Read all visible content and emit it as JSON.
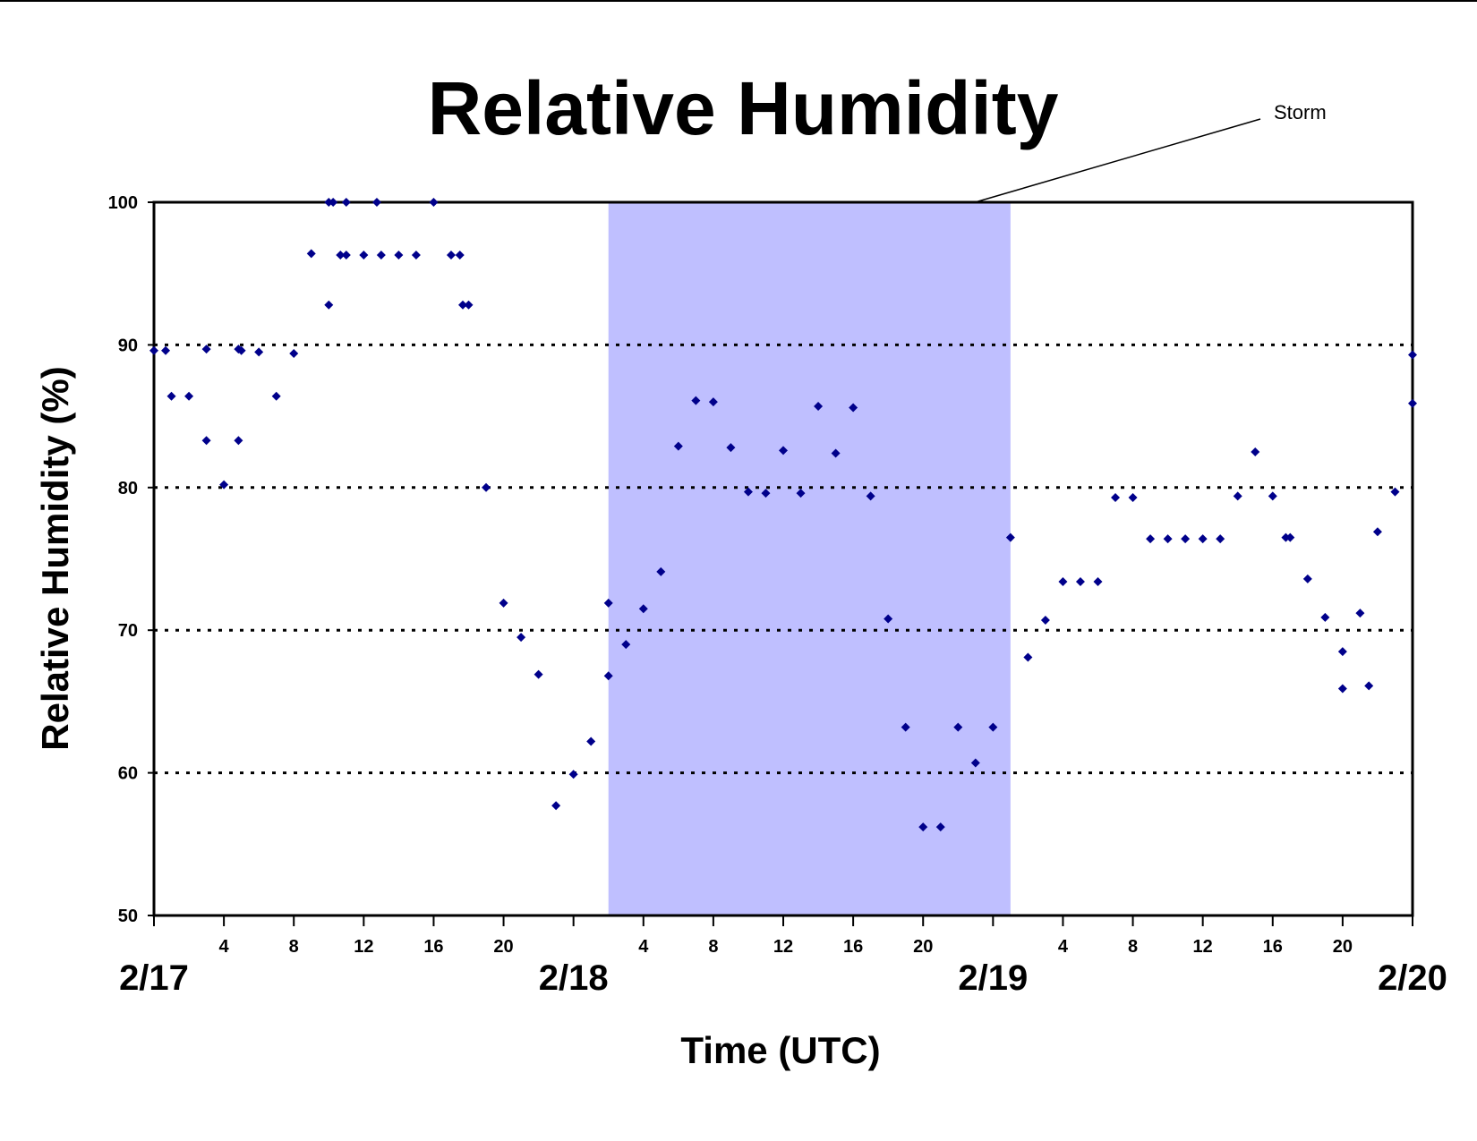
{
  "chart_data": {
    "type": "scatter",
    "title": "Relative Humidity",
    "xlabel": "Time (UTC)",
    "ylabel": "Relative Humidity (%)",
    "ylim": [
      50,
      100
    ],
    "xlim": [
      "2/17 00:00",
      "2/20 00:00"
    ],
    "y_ticks": [
      "50",
      "60",
      "70",
      "80",
      "90",
      "100"
    ],
    "x_hour_ticks": [
      "4",
      "8",
      "12",
      "16",
      "20"
    ],
    "day_labels": [
      "2/17",
      "2/18",
      "2/19",
      "2/20"
    ],
    "grid": "dotted horizontal at 60, 70, 80, 90",
    "series_color": "#00008B",
    "storm_shade_color": "#BFBFFF",
    "annotation": {
      "text": "Storm",
      "start": "2/18 02:00",
      "end": "2/19 01:00"
    },
    "points": [
      [
        "2/17 00:00",
        89.6
      ],
      [
        "2/17 00:40",
        89.6
      ],
      [
        "2/17 01:00",
        86.4
      ],
      [
        "2/17 02:00",
        86.4
      ],
      [
        "2/17 03:00",
        89.7
      ],
      [
        "2/17 03:00",
        83.3
      ],
      [
        "2/17 04:00",
        80.2
      ],
      [
        "2/17 04:50",
        89.7
      ],
      [
        "2/17 05:00",
        89.6
      ],
      [
        "2/17 04:50",
        83.3
      ],
      [
        "2/17 06:00",
        89.5
      ],
      [
        "2/17 07:00",
        86.4
      ],
      [
        "2/17 08:00",
        89.4
      ],
      [
        "2/17 09:00",
        96.4
      ],
      [
        "2/17 10:00",
        100
      ],
      [
        "2/17 10:15",
        100
      ],
      [
        "2/17 10:00",
        92.8
      ],
      [
        "2/17 10:40",
        96.3
      ],
      [
        "2/17 11:00",
        100
      ],
      [
        "2/17 11:00",
        96.3
      ],
      [
        "2/17 12:00",
        96.3
      ],
      [
        "2/17 12:45",
        100
      ],
      [
        "2/17 13:00",
        96.3
      ],
      [
        "2/17 14:00",
        96.3
      ],
      [
        "2/17 15:00",
        96.3
      ],
      [
        "2/17 16:00",
        100
      ],
      [
        "2/17 17:00",
        96.3
      ],
      [
        "2/17 17:30",
        96.3
      ],
      [
        "2/17 17:40",
        92.8
      ],
      [
        "2/17 18:00",
        92.8
      ],
      [
        "2/17 19:00",
        80.0
      ],
      [
        "2/17 20:00",
        71.9
      ],
      [
        "2/17 21:00",
        69.5
      ],
      [
        "2/17 22:00",
        66.9
      ],
      [
        "2/17 23:00",
        57.7
      ],
      [
        "2/18 00:00",
        59.9
      ],
      [
        "2/18 01:00",
        62.2
      ],
      [
        "2/18 02:00",
        71.9
      ],
      [
        "2/18 02:00",
        66.8
      ],
      [
        "2/18 03:00",
        69.0
      ],
      [
        "2/18 04:00",
        71.5
      ],
      [
        "2/18 05:00",
        74.1
      ],
      [
        "2/18 06:00",
        82.9
      ],
      [
        "2/18 07:00",
        86.1
      ],
      [
        "2/18 08:00",
        86.0
      ],
      [
        "2/18 09:00",
        82.8
      ],
      [
        "2/18 10:00",
        79.7
      ],
      [
        "2/18 11:00",
        79.6
      ],
      [
        "2/18 12:00",
        82.6
      ],
      [
        "2/18 13:00",
        79.6
      ],
      [
        "2/18 14:00",
        85.7
      ],
      [
        "2/18 15:00",
        82.4
      ],
      [
        "2/18 16:00",
        85.6
      ],
      [
        "2/18 17:00",
        79.4
      ],
      [
        "2/18 18:00",
        70.8
      ],
      [
        "2/18 19:00",
        63.2
      ],
      [
        "2/18 20:00",
        56.2
      ],
      [
        "2/18 21:00",
        56.2
      ],
      [
        "2/18 22:00",
        63.2
      ],
      [
        "2/18 23:00",
        60.7
      ],
      [
        "2/19 00:00",
        63.2
      ],
      [
        "2/19 01:00",
        76.5
      ],
      [
        "2/19 02:00",
        68.1
      ],
      [
        "2/19 03:00",
        70.7
      ],
      [
        "2/19 04:00",
        73.4
      ],
      [
        "2/19 05:00",
        73.4
      ],
      [
        "2/19 06:00",
        73.4
      ],
      [
        "2/19 07:00",
        79.3
      ],
      [
        "2/19 08:00",
        79.3
      ],
      [
        "2/19 09:00",
        76.4
      ],
      [
        "2/19 10:00",
        76.4
      ],
      [
        "2/19 11:00",
        76.4
      ],
      [
        "2/19 12:00",
        76.4
      ],
      [
        "2/19 13:00",
        76.4
      ],
      [
        "2/19 14:00",
        79.4
      ],
      [
        "2/19 15:00",
        82.5
      ],
      [
        "2/19 16:00",
        79.4
      ],
      [
        "2/19 16:45",
        76.5
      ],
      [
        "2/19 17:00",
        76.5
      ],
      [
        "2/19 18:00",
        73.6
      ],
      [
        "2/19 19:00",
        70.9
      ],
      [
        "2/19 20:00",
        68.5
      ],
      [
        "2/19 20:00",
        65.9
      ],
      [
        "2/19 21:00",
        71.2
      ],
      [
        "2/19 21:30",
        66.1
      ],
      [
        "2/19 22:00",
        76.9
      ],
      [
        "2/19 23:00",
        79.7
      ],
      [
        "2/20 00:00",
        89.3
      ],
      [
        "2/20 00:00",
        85.9
      ]
    ]
  }
}
